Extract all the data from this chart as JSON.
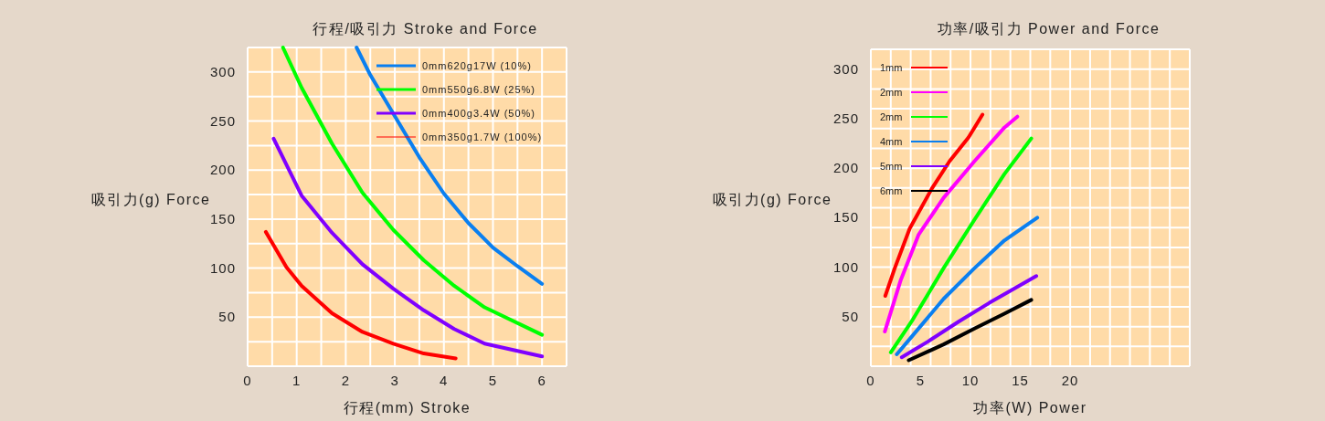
{
  "chart_data": [
    {
      "type": "line",
      "title": "行程/吸引力 Stroke and Force",
      "xlabel": "行程(mm) Stroke",
      "ylabel": "吸引力(g) Force",
      "xlim": [
        0,
        6.5
      ],
      "ylim": [
        0,
        325
      ],
      "xticks": [
        0,
        1,
        2,
        3,
        4,
        5,
        6
      ],
      "yticks": [
        50,
        100,
        150,
        200,
        250,
        300
      ],
      "grid": true,
      "legend": "top right",
      "series": [
        {
          "name": "0mm620g17W (10%)",
          "color": "#0a7ff0",
          "x": [
            2.22,
            2.5,
            3.0,
            3.5,
            4.0,
            4.5,
            5.0,
            5.5,
            6.0
          ],
          "values": [
            325,
            297,
            255,
            213,
            176,
            146,
            121,
            102,
            84
          ]
        },
        {
          "name": "0mm550g6.8W (25%)",
          "color": "#00ff00",
          "x": [
            0.72,
            1.1,
            1.72,
            2.34,
            2.97,
            3.59,
            4.21,
            4.83,
            6.0
          ],
          "values": [
            325,
            284,
            227,
            177,
            139,
            108,
            82,
            60,
            32
          ]
        },
        {
          "name": "0mm400g3.4W (50%)",
          "color": "#8000ff",
          "x": [
            0.53,
            1.1,
            1.72,
            2.34,
            2.97,
            3.59,
            4.21,
            4.83,
            6.0
          ],
          "values": [
            232,
            174,
            136,
            104,
            79,
            57,
            38,
            23,
            10
          ]
        },
        {
          "name": "0mm350g1.7W (100%)",
          "color": "#ff0000",
          "x": [
            0.37,
            0.79,
            1.1,
            1.72,
            2.34,
            2.97,
            3.59,
            4.24
          ],
          "values": [
            137,
            101,
            82,
            54,
            35,
            23,
            13,
            8
          ]
        }
      ]
    },
    {
      "type": "line",
      "title": "功率/吸引力 Power and Force",
      "xlabel": "功率(W) Power",
      "ylabel": "吸引力(g) Force",
      "xlim": [
        0,
        32
      ],
      "ylim": [
        0,
        320
      ],
      "xticks": [
        0,
        5,
        10,
        15,
        20
      ],
      "yticks": [
        50,
        100,
        150,
        200,
        250,
        300
      ],
      "grid": true,
      "legend": "top left",
      "series": [
        {
          "name": "1mm",
          "color": "#ff0000",
          "x": [
            1.45,
            2.4,
            3.9,
            6.1,
            7.9,
            9.8,
            11.2
          ],
          "values": [
            71,
            99,
            139,
            179,
            207,
            231,
            254
          ]
        },
        {
          "name": "2mm",
          "color": "#ff00ff",
          "x": [
            1.4,
            3.0,
            4.8,
            7.3,
            10.4,
            13.4,
            14.7
          ],
          "values": [
            35,
            87,
            133,
            170,
            207,
            241,
            252
          ]
        },
        {
          "name": "2mm",
          "color": "#00ff00",
          "x": [
            2.0,
            4.2,
            7.3,
            10.4,
            13.4,
            16.1
          ],
          "values": [
            14,
            47,
            99,
            148,
            194,
            230
          ]
        },
        {
          "name": "4mm",
          "color": "#0a7ff0",
          "x": [
            2.6,
            4.2,
            7.3,
            10.4,
            13.4,
            16.7
          ],
          "values": [
            12,
            31,
            68,
            99,
            127,
            150
          ]
        },
        {
          "name": "5mm",
          "color": "#8000ff",
          "x": [
            3.1,
            5.75,
            8.8,
            11.9,
            16.6
          ],
          "values": [
            9,
            25,
            45,
            64,
            91
          ]
        },
        {
          "name": "6mm",
          "color": "#000000",
          "x": [
            3.8,
            7.3,
            10.4,
            13.4,
            16.1
          ],
          "values": [
            6,
            22,
            38,
            53,
            67
          ]
        }
      ]
    }
  ]
}
